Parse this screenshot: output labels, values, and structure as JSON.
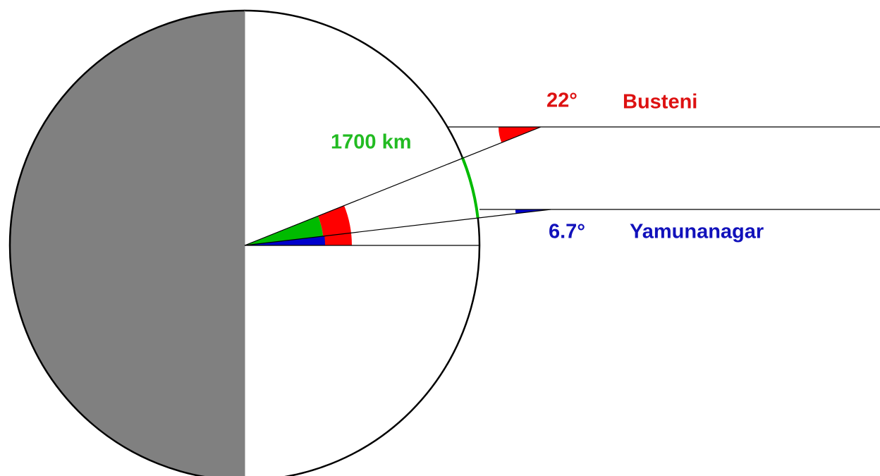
{
  "labels": {
    "busteni_angle": "22°",
    "busteni": "Busteni",
    "distance": "1700 km",
    "yamunanagar_angle": "6.7°",
    "yamunanagar": "Yamunanagar"
  }
}
